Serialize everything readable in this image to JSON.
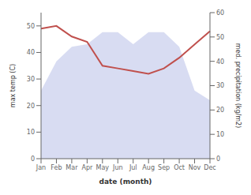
{
  "chart_data": {
    "type": "line",
    "xlabel": "date (month)",
    "ylabel": "max temp (C)",
    "y2label": "med. precipitation (kg/m2)",
    "categories": [
      "Jan",
      "Feb",
      "Mar",
      "Apr",
      "May",
      "Jun",
      "Jul",
      "Aug",
      "Sep",
      "Oct",
      "Nov",
      "Dec"
    ],
    "series": [
      {
        "type": "area",
        "axis": "y2",
        "color": "#b8c0e8",
        "values": [
          28,
          40,
          46,
          47,
          52,
          52,
          47,
          52,
          52,
          46,
          28,
          24
        ]
      },
      {
        "type": "line",
        "color": "#c0504d",
        "values": [
          49,
          50,
          46,
          44,
          35,
          34,
          33,
          32,
          34,
          38,
          43,
          48
        ]
      }
    ],
    "ylim": [
      0,
      55
    ],
    "yticks": [
      0,
      10,
      20,
      30,
      40,
      50
    ],
    "y2lim": [
      0,
      60
    ],
    "y2ticks": [
      0,
      10,
      20,
      30,
      40,
      50,
      60
    ],
    "grid": false
  }
}
